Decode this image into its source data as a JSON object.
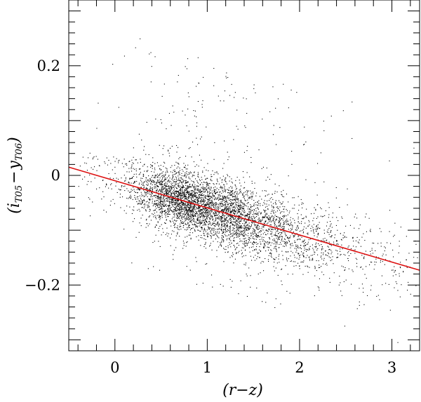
{
  "chart_data": {
    "type": "scatter",
    "xlabel": "(r−z)",
    "ylabel": "(i_T05 − y_T06)",
    "ylabel_parts": {
      "open": "(",
      "i": "i",
      "i_sub": "T05",
      "minus": "−",
      "y": "y",
      "y_sub": "T06",
      "close": ")"
    },
    "xlim": [
      -0.5,
      3.3
    ],
    "ylim": [
      -0.32,
      0.32
    ],
    "x_ticks": [
      0,
      1,
      2,
      3
    ],
    "x_tick_labels": [
      "0",
      "1",
      "2",
      "3"
    ],
    "y_ticks": [
      -0.2,
      0,
      0.2
    ],
    "y_tick_labels": [
      "−0.2",
      "0",
      "0.2"
    ],
    "grid": false,
    "point_color": "#000000",
    "fit_line": {
      "color": "#dd1111",
      "x": [
        -0.5,
        3.3
      ],
      "y": [
        0.015,
        -0.173
      ]
    },
    "points": {
      "count": 5000,
      "dense_region": {
        "x_center": 0.8,
        "y_center": -0.05
      },
      "note": "dense cloud of several thousand points following the red fit line"
    }
  }
}
